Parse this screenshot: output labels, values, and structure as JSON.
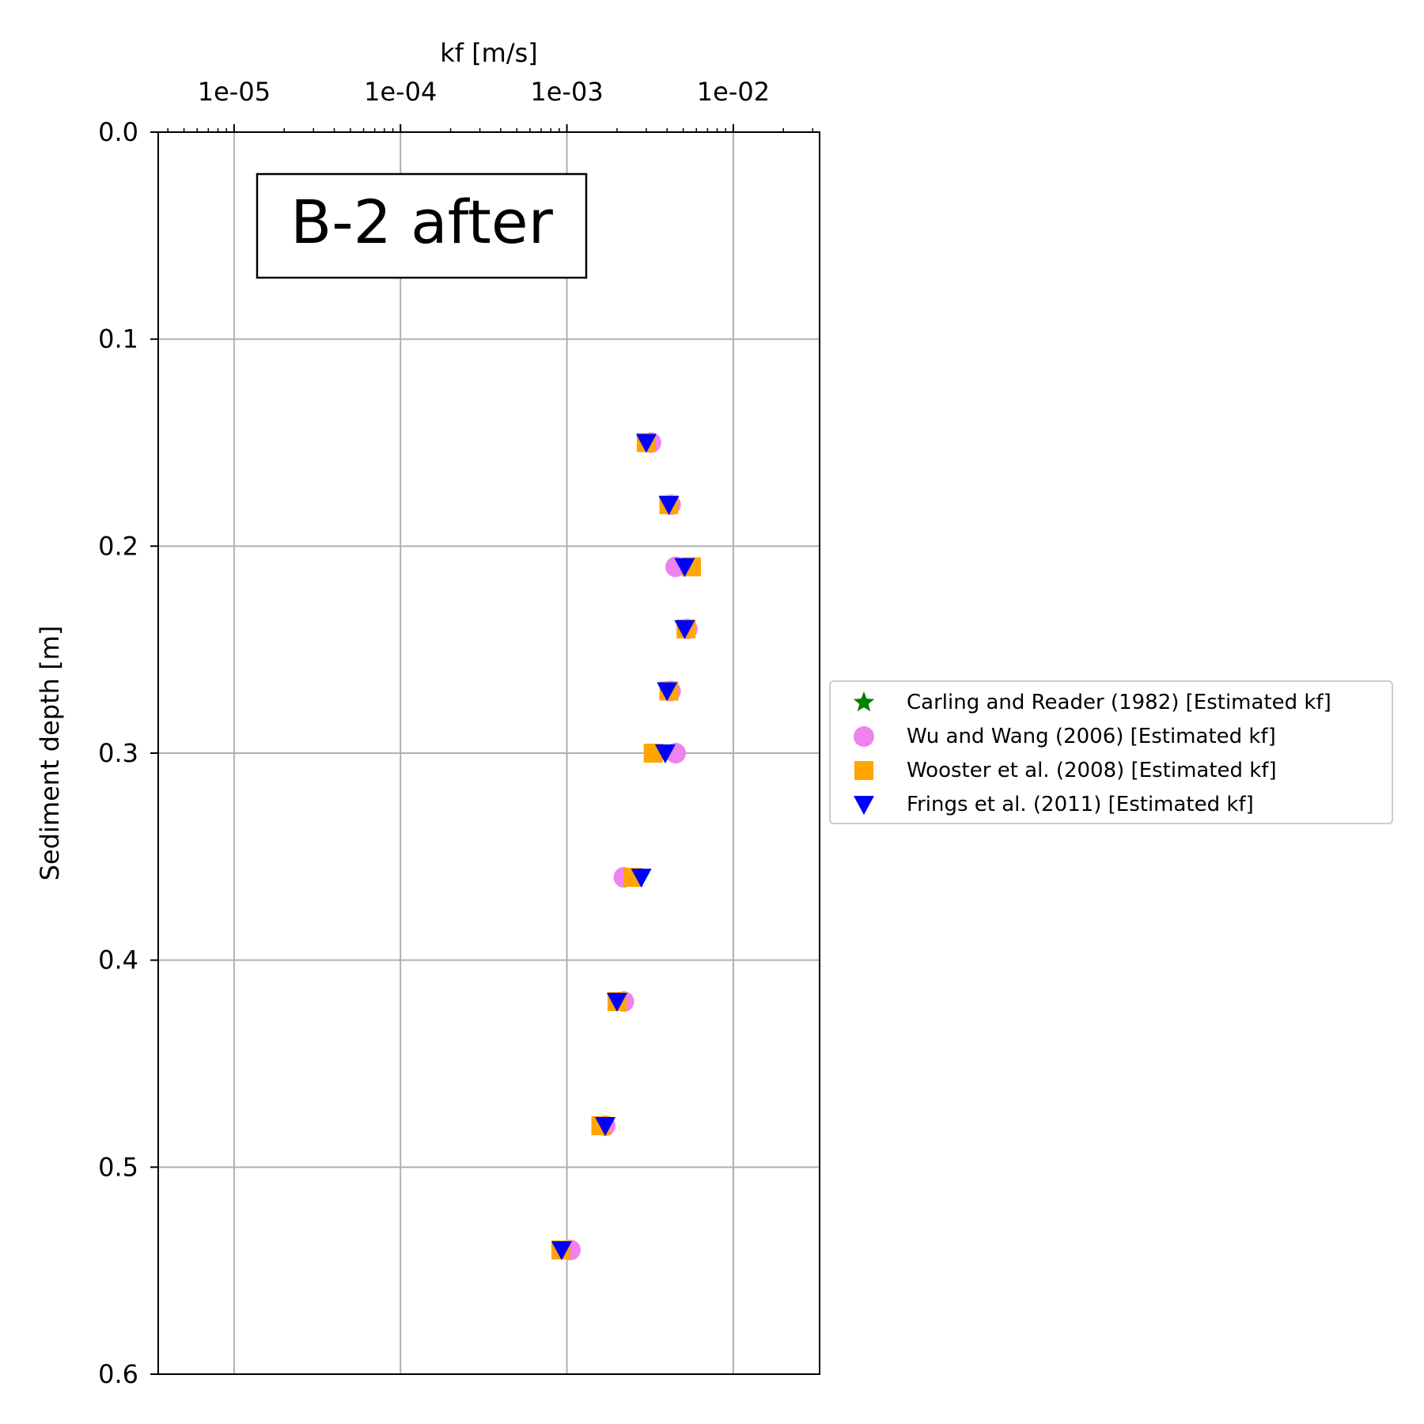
{
  "chart_data": {
    "type": "scatter",
    "annotation": "B-2 after",
    "xlabel": "kf [m/s]",
    "ylabel": "Sediment depth [m]",
    "x_scale": "log",
    "x_axis_position": "top",
    "xlim": [
      3.5e-06,
      0.033
    ],
    "ylim": [
      0.6,
      0.0
    ],
    "y_inverted": true,
    "x_ticks": [
      1e-05,
      0.0001,
      0.001,
      0.01
    ],
    "x_tick_labels": [
      "1e-05",
      "1e-04",
      "1e-03",
      "1e-02"
    ],
    "y_ticks": [
      0.0,
      0.1,
      0.2,
      0.3,
      0.4,
      0.5,
      0.6
    ],
    "y_tick_labels": [
      "0.0",
      "0.1",
      "0.2",
      "0.3",
      "0.4",
      "0.5",
      "0.6"
    ],
    "grid": true,
    "legend_position": "right-outside",
    "series": [
      {
        "name": "Carling and Reader (1982) [Estimated kf]",
        "marker": "star",
        "color": "#008000",
        "points": []
      },
      {
        "name": "Wu and Wang (2006) [Estimated kf]",
        "marker": "circle",
        "color": "#ee82ee",
        "points": [
          {
            "x": 0.0032,
            "y": 0.15
          },
          {
            "x": 0.0042,
            "y": 0.18
          },
          {
            "x": 0.0045,
            "y": 0.21
          },
          {
            "x": 0.0053,
            "y": 0.24
          },
          {
            "x": 0.0042,
            "y": 0.27
          },
          {
            "x": 0.0045,
            "y": 0.3
          },
          {
            "x": 0.0022,
            "y": 0.36
          },
          {
            "x": 0.0022,
            "y": 0.42
          },
          {
            "x": 0.0017,
            "y": 0.48
          },
          {
            "x": 0.00105,
            "y": 0.54
          }
        ]
      },
      {
        "name": "Wooster et al. (2008) [Estimated kf]",
        "marker": "square",
        "color": "#ffa500",
        "points": [
          {
            "x": 0.003,
            "y": 0.15
          },
          {
            "x": 0.0041,
            "y": 0.18
          },
          {
            "x": 0.0056,
            "y": 0.21
          },
          {
            "x": 0.0052,
            "y": 0.24
          },
          {
            "x": 0.0041,
            "y": 0.27
          },
          {
            "x": 0.0033,
            "y": 0.3
          },
          {
            "x": 0.0025,
            "y": 0.36
          },
          {
            "x": 0.002,
            "y": 0.42
          },
          {
            "x": 0.0016,
            "y": 0.48
          },
          {
            "x": 0.00092,
            "y": 0.54
          }
        ]
      },
      {
        "name": "Frings et al. (2011)  [Estimated kf]",
        "marker": "triangle-down",
        "color": "#0000ff",
        "points": [
          {
            "x": 0.003,
            "y": 0.15
          },
          {
            "x": 0.0041,
            "y": 0.18
          },
          {
            "x": 0.0051,
            "y": 0.21
          },
          {
            "x": 0.0051,
            "y": 0.24
          },
          {
            "x": 0.004,
            "y": 0.27
          },
          {
            "x": 0.0039,
            "y": 0.3
          },
          {
            "x": 0.0028,
            "y": 0.36
          },
          {
            "x": 0.002,
            "y": 0.42
          },
          {
            "x": 0.0017,
            "y": 0.48
          },
          {
            "x": 0.00093,
            "y": 0.54
          }
        ]
      }
    ]
  }
}
